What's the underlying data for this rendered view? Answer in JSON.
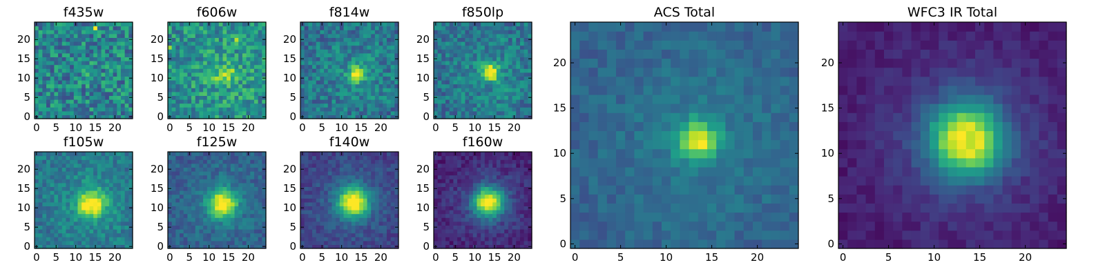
{
  "figure": {
    "colormap": [
      "#440154",
      "#482878",
      "#3e4989",
      "#31688e",
      "#26828e",
      "#1f9e89",
      "#35b779",
      "#6ece58",
      "#b5de2b",
      "#fde725"
    ],
    "grid_size": 25
  },
  "chart_data": [
    {
      "type": "heatmap",
      "title": "f435w",
      "xlabel": "",
      "ylabel": "",
      "xlim": [
        0,
        25
      ],
      "ylim": [
        0,
        25
      ],
      "xticks": [
        0,
        5,
        10,
        15,
        20
      ],
      "yticks": [
        0,
        5,
        10,
        15,
        20
      ],
      "grid": false,
      "source_peak": [
        14,
        11
      ],
      "source_amplitude": 0.05,
      "source_width": 2.0,
      "background": 0.45,
      "noise": 0.22,
      "hot_pixels": [
        [
          15,
          23,
          1.0
        ]
      ]
    },
    {
      "type": "heatmap",
      "title": "f606w",
      "xlabel": "",
      "ylabel": "",
      "xlim": [
        0,
        25
      ],
      "ylim": [
        0,
        25
      ],
      "xticks": [
        0,
        5,
        10,
        15,
        20
      ],
      "yticks": [
        0,
        5,
        10,
        15,
        20
      ],
      "grid": false,
      "source_peak": [
        14,
        11
      ],
      "source_amplitude": 0.35,
      "source_width": 1.8,
      "background": 0.5,
      "noise": 0.2,
      "hot_pixels": [
        [
          17,
          20,
          0.9
        ],
        [
          0,
          18,
          0.85
        ]
      ]
    },
    {
      "type": "heatmap",
      "title": "f814w",
      "xlabel": "",
      "ylabel": "",
      "xlim": [
        0,
        25
      ],
      "ylim": [
        0,
        25
      ],
      "xticks": [
        0,
        5,
        10,
        15,
        20
      ],
      "yticks": [
        0,
        5,
        10,
        15,
        20
      ],
      "grid": false,
      "source_peak": [
        14,
        11
      ],
      "source_amplitude": 0.55,
      "source_width": 1.5,
      "background": 0.38,
      "noise": 0.16,
      "hot_pixels": []
    },
    {
      "type": "heatmap",
      "title": "f850lp",
      "xlabel": "",
      "ylabel": "",
      "xlim": [
        0,
        25
      ],
      "ylim": [
        0,
        25
      ],
      "xticks": [
        0,
        5,
        10,
        15,
        20
      ],
      "yticks": [
        0,
        5,
        10,
        15,
        20
      ],
      "grid": false,
      "source_peak": [
        14,
        11.5
      ],
      "source_amplitude": 0.65,
      "source_width": 1.4,
      "background": 0.38,
      "noise": 0.15,
      "hot_pixels": []
    },
    {
      "type": "heatmap",
      "title": "f105w",
      "xlabel": "",
      "ylabel": "",
      "xlim": [
        0,
        25
      ],
      "ylim": [
        0,
        25
      ],
      "xticks": [
        0,
        5,
        10,
        15,
        20
      ],
      "yticks": [
        0,
        5,
        10,
        15,
        20
      ],
      "grid": false,
      "source_peak": [
        14,
        11
      ],
      "source_amplitude": 0.6,
      "source_width": 2.4,
      "background": 0.4,
      "noise": 0.12,
      "hot_pixels": []
    },
    {
      "type": "heatmap",
      "title": "f125w",
      "xlabel": "",
      "ylabel": "",
      "xlim": [
        0,
        25
      ],
      "ylim": [
        0,
        25
      ],
      "xticks": [
        0,
        5,
        10,
        15,
        20
      ],
      "yticks": [
        0,
        5,
        10,
        15,
        20
      ],
      "grid": false,
      "source_peak": [
        13.5,
        11
      ],
      "source_amplitude": 0.7,
      "source_width": 2.4,
      "background": 0.3,
      "noise": 0.1,
      "hot_pixels": []
    },
    {
      "type": "heatmap",
      "title": "f140w",
      "xlabel": "",
      "ylabel": "",
      "xlim": [
        0,
        25
      ],
      "ylim": [
        0,
        25
      ],
      "xticks": [
        0,
        5,
        10,
        15,
        20
      ],
      "yticks": [
        0,
        5,
        10,
        15,
        20
      ],
      "grid": false,
      "source_peak": [
        13,
        11.5
      ],
      "source_amplitude": 0.8,
      "source_width": 2.6,
      "background": 0.2,
      "noise": 0.08,
      "hot_pixels": []
    },
    {
      "type": "heatmap",
      "title": "f160w",
      "xlabel": "",
      "ylabel": "",
      "xlim": [
        0,
        25
      ],
      "ylim": [
        0,
        25
      ],
      "xticks": [
        0,
        5,
        10,
        15,
        20
      ],
      "yticks": [
        0,
        5,
        10,
        15,
        20
      ],
      "grid": false,
      "source_peak": [
        13.5,
        11.5
      ],
      "source_amplitude": 0.85,
      "source_width": 2.6,
      "background": 0.1,
      "noise": 0.08,
      "hot_pixels": []
    },
    {
      "type": "heatmap",
      "title": "ACS Total",
      "xlabel": "",
      "ylabel": "",
      "xlim": [
        0,
        25
      ],
      "ylim": [
        0,
        25
      ],
      "xticks": [
        0,
        5,
        10,
        15,
        20
      ],
      "yticks": [
        0,
        5,
        10,
        15,
        20
      ],
      "grid": false,
      "source_peak": [
        13.5,
        11.5
      ],
      "source_amplitude": 0.55,
      "source_width": 1.5,
      "background": 0.32,
      "noise": 0.07,
      "hot_pixels": [
        [
          13,
          12,
          0.9
        ],
        [
          14,
          11,
          1.0
        ]
      ]
    },
    {
      "type": "heatmap",
      "title": "WFC3 IR Total",
      "xlabel": "",
      "ylabel": "",
      "xlim": [
        0,
        25
      ],
      "ylim": [
        0,
        25
      ],
      "xticks": [
        0,
        5,
        10,
        15,
        20
      ],
      "yticks": [
        0,
        5,
        10,
        15,
        20
      ],
      "grid": false,
      "source_peak": [
        13.5,
        11.5
      ],
      "source_amplitude": 0.85,
      "source_width": 2.8,
      "background": 0.08,
      "noise": 0.05,
      "hot_pixels": [
        [
          13,
          12,
          1.0
        ],
        [
          13,
          11,
          0.98
        ],
        [
          14,
          12,
          0.9
        ],
        [
          14,
          11,
          0.9
        ]
      ]
    }
  ]
}
